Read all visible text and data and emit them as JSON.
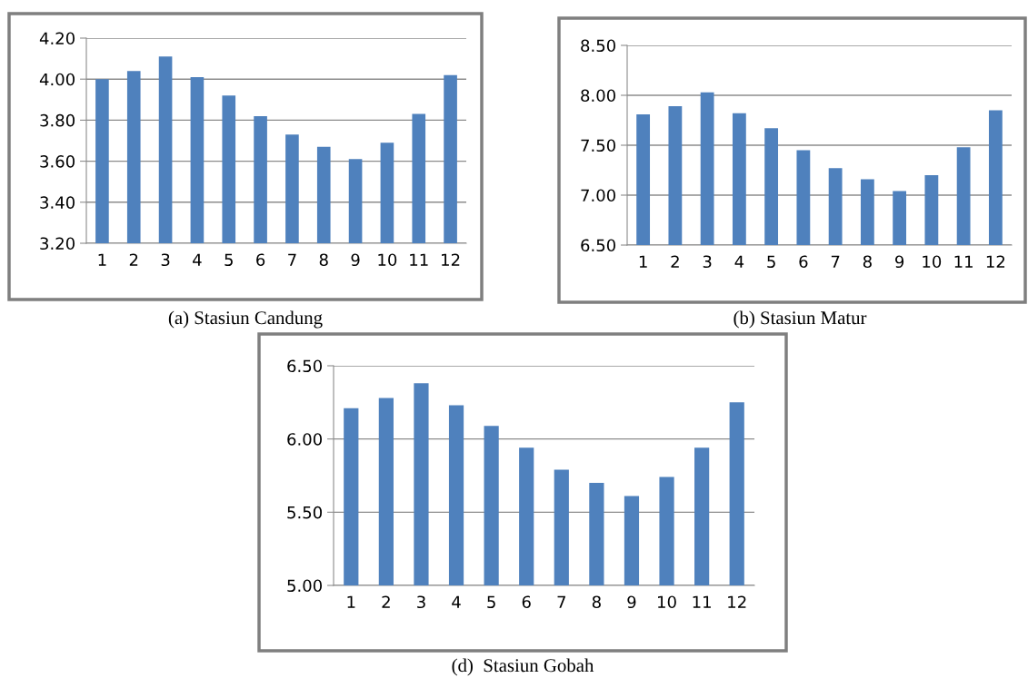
{
  "chart_data": [
    {
      "type": "bar",
      "categories": [
        "1",
        "2",
        "3",
        "4",
        "5",
        "6",
        "7",
        "8",
        "9",
        "10",
        "11",
        "12"
      ],
      "values": [
        4.0,
        4.04,
        4.11,
        4.01,
        3.92,
        3.82,
        3.73,
        3.67,
        3.61,
        3.69,
        3.83,
        4.02
      ],
      "color": "#4f81bd",
      "ylim": [
        3.2,
        4.2
      ],
      "yticks": [
        {
          "value": 3.2,
          "label": "3.20"
        },
        {
          "value": 3.4,
          "label": "3.40"
        },
        {
          "value": 3.6,
          "label": "3.60"
        },
        {
          "value": 3.8,
          "label": "3.80"
        },
        {
          "value": 4.0,
          "label": "4.00"
        },
        {
          "value": 4.2,
          "label": "4.20"
        }
      ],
      "grid": "y",
      "annotations": [
        "(a) Stasiun Candung"
      ]
    },
    {
      "type": "bar",
      "categories": [
        "1",
        "2",
        "3",
        "4",
        "5",
        "6",
        "7",
        "8",
        "9",
        "10",
        "11",
        "12"
      ],
      "values": [
        7.81,
        7.89,
        8.03,
        7.82,
        7.67,
        7.45,
        7.27,
        7.16,
        7.04,
        7.2,
        7.48,
        7.85
      ],
      "color": "#4f81bd",
      "ylim": [
        6.5,
        8.5
      ],
      "yticks": [
        {
          "value": 6.5,
          "label": "6.50"
        },
        {
          "value": 7.0,
          "label": "7.00"
        },
        {
          "value": 7.5,
          "label": "7.50"
        },
        {
          "value": 8.0,
          "label": "8.00"
        },
        {
          "value": 8.5,
          "label": "8.50"
        }
      ],
      "grid": "y",
      "annotations": [
        "(b) Stasiun Matur"
      ]
    },
    {
      "type": "bar",
      "categories": [
        "1",
        "2",
        "3",
        "4",
        "5",
        "6",
        "7",
        "8",
        "9",
        "10",
        "11",
        "12"
      ],
      "values": [
        6.21,
        6.28,
        6.38,
        6.23,
        6.09,
        5.94,
        5.79,
        5.7,
        5.61,
        5.74,
        5.94,
        6.25
      ],
      "color": "#4f81bd",
      "ylim": [
        5.0,
        6.5
      ],
      "yticks": [
        {
          "value": 5.0,
          "label": "5.00"
        },
        {
          "value": 5.5,
          "label": "5.50"
        },
        {
          "value": 6.0,
          "label": "6.00"
        },
        {
          "value": 6.5,
          "label": "6.50"
        }
      ],
      "grid": "y",
      "annotations": [
        "(d)  Stasiun Gobah"
      ]
    }
  ]
}
